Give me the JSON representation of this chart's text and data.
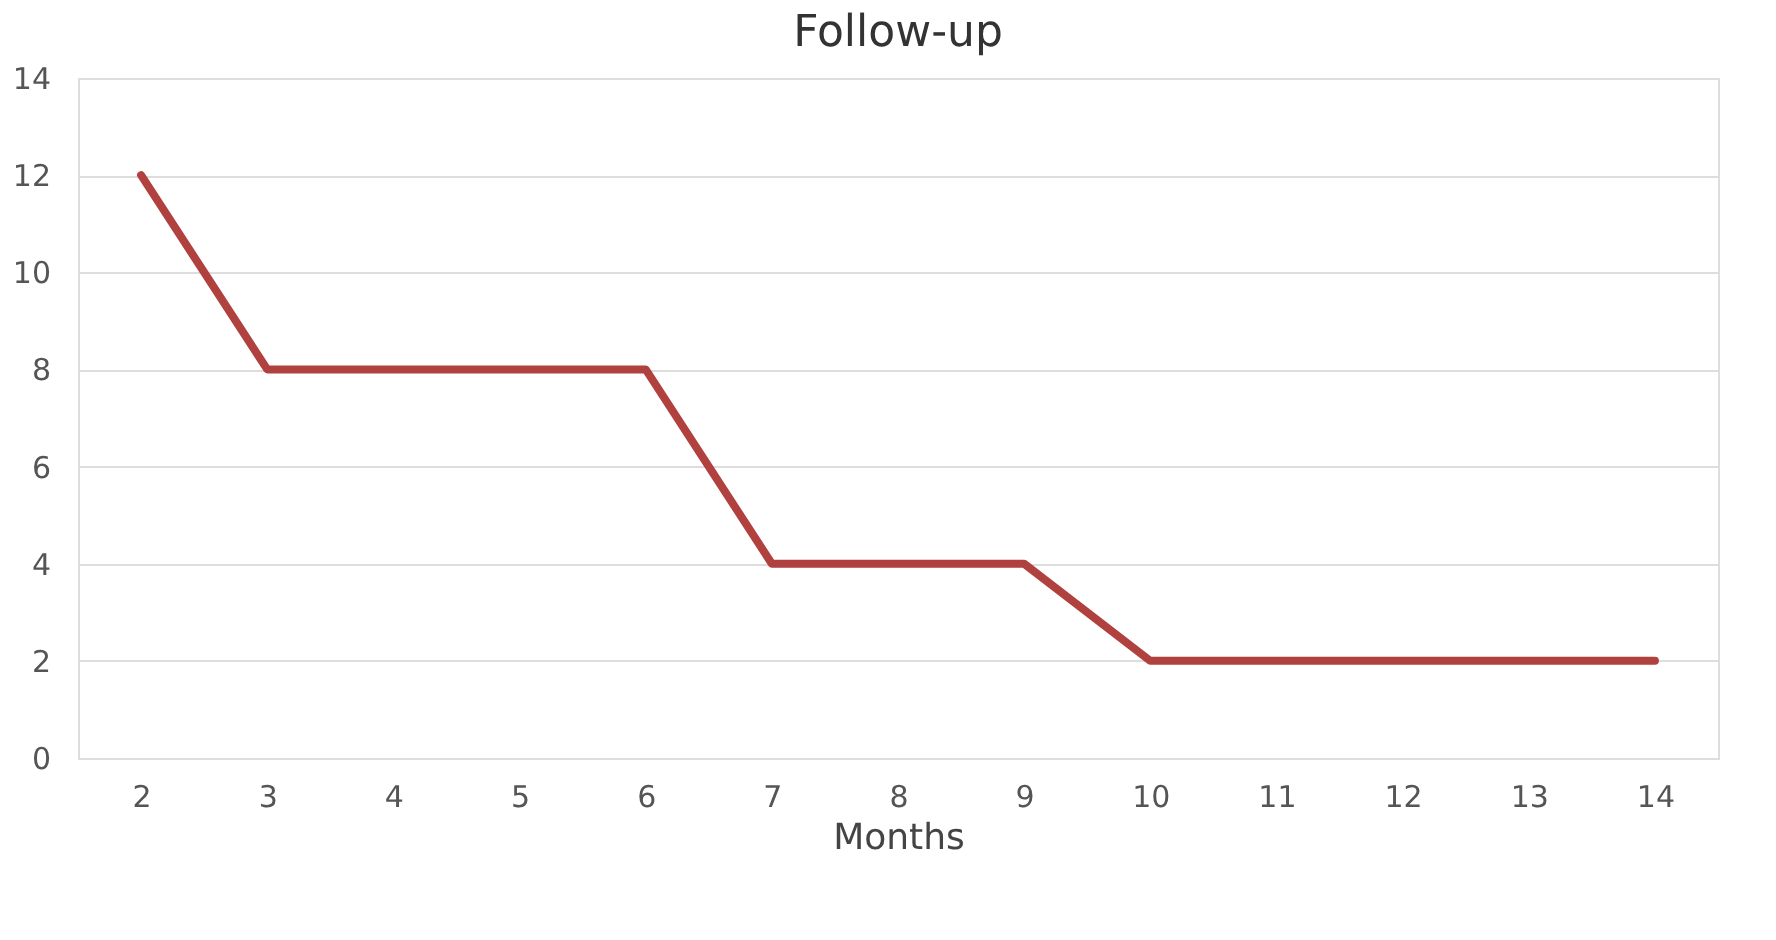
{
  "chart_data": {
    "type": "line",
    "title": "Follow-up",
    "xlabel": "Months",
    "categories": [
      "2",
      "3",
      "4",
      "5",
      "6",
      "7",
      "8",
      "9",
      "10",
      "11",
      "12",
      "13",
      "14"
    ],
    "series": [
      {
        "color": "#b0413e",
        "values": [
          12,
          8,
          8,
          8,
          8,
          4,
          4,
          4,
          2,
          2,
          2,
          2,
          2
        ]
      }
    ],
    "ylim": [
      0,
      14
    ],
    "yticks": [
      0,
      2,
      4,
      6,
      8,
      10,
      12,
      14
    ],
    "grid": "y",
    "marker": "none",
    "line_style": "solid"
  }
}
